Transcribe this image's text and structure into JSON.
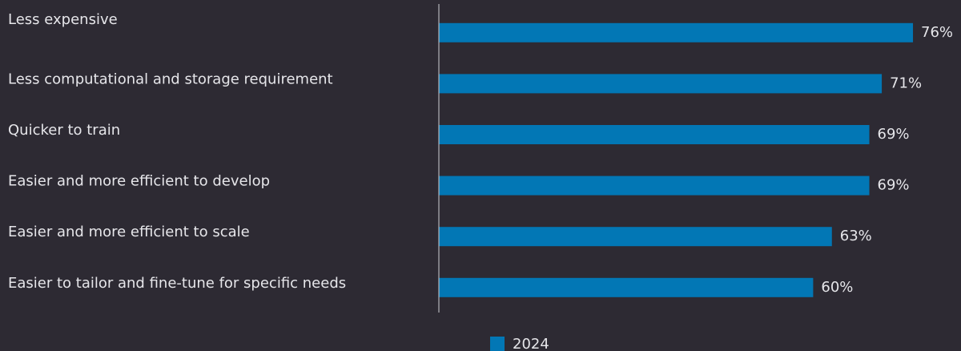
{
  "chart_data": {
    "type": "bar",
    "orientation": "horizontal",
    "categories": [
      "Less expensive",
      "Less computational and storage requirement",
      "Quicker to train",
      "Easier and more efficient to develop",
      "Easier and more efficient to scale",
      "Easier to tailor and fine-tune for specific needs"
    ],
    "series": [
      {
        "name": "2024",
        "color": "#0277b5",
        "values": [
          76,
          71,
          69,
          69,
          63,
          60
        ],
        "value_labels": [
          "76%",
          "71%",
          "69%",
          "69%",
          "63%",
          "60%"
        ]
      }
    ],
    "xlim": [
      0,
      100
    ],
    "legend": "bottom"
  }
}
